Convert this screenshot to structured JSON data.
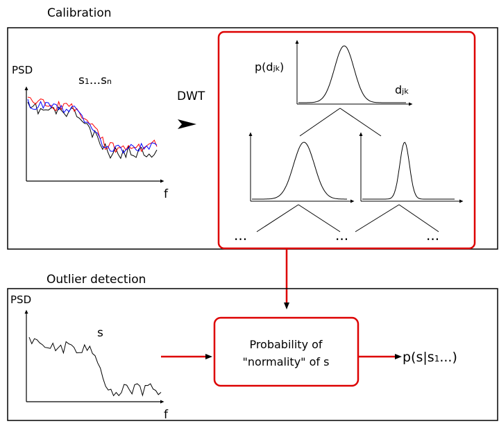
{
  "calibration": {
    "title": "Calibration",
    "psd_label": "PSD",
    "series_label_main": "s",
    "series_label_sub1": "1",
    "series_label_dots": "...",
    "series_label_main2": "s",
    "series_label_subn": "n",
    "x_label": "f",
    "dwt_label": "DWT",
    "series_colors": [
      "#000000",
      "#ff0000",
      "#0000ff"
    ]
  },
  "dwt_tree": {
    "root_y_label_p": "p(d",
    "root_y_label_sub": "jk",
    "root_y_label_close": ")",
    "root_x_label_d": "d",
    "root_x_label_sub": "jk",
    "ellipsis_left": "...",
    "ellipsis_mid": "...",
    "ellipsis_right": "...",
    "border_color": "#dd0000"
  },
  "outlier": {
    "title": "Outlier detection",
    "psd_label": "PSD",
    "series_label": "s",
    "x_label": "f",
    "box_line1": "Probability of",
    "box_line2": "\"normality\" of s",
    "output_main": "p(s|s",
    "output_sub": "1",
    "output_tail": "...)",
    "accent_color": "#dd0000"
  }
}
